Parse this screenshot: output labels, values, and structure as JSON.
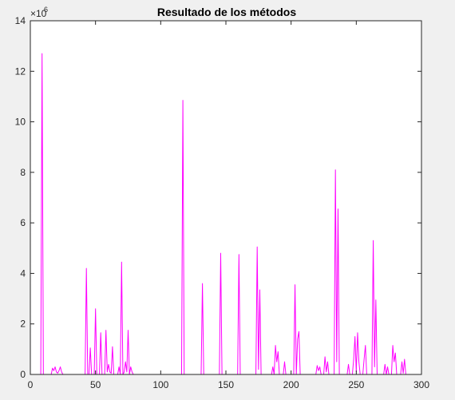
{
  "chart_data": {
    "type": "line",
    "title": "Resultado de los métodos",
    "xlabel": "",
    "ylabel": "",
    "xlim": [
      0,
      300
    ],
    "ylim": [
      0,
      14
    ],
    "x_ticks": [
      0,
      50,
      100,
      150,
      200,
      250,
      300
    ],
    "y_ticks": [
      0,
      2,
      4,
      6,
      8,
      10,
      12,
      14
    ],
    "y_exponent_label": "×10",
    "y_exponent_power": "6",
    "grid": false,
    "series": [
      {
        "color": "#ff00ff",
        "points": [
          [
            0,
            0
          ],
          [
            8,
            0
          ],
          [
            9,
            12.7
          ],
          [
            10,
            0
          ],
          [
            16,
            0
          ],
          [
            17,
            0.25
          ],
          [
            18,
            0.15
          ],
          [
            19,
            0.3
          ],
          [
            20,
            0.1
          ],
          [
            21,
            0.05
          ],
          [
            22,
            0.15
          ],
          [
            23,
            0.3
          ],
          [
            24,
            0.1
          ],
          [
            25,
            0
          ],
          [
            42,
            0
          ],
          [
            43,
            4.2
          ],
          [
            44,
            0
          ],
          [
            45,
            0
          ],
          [
            46,
            1.05
          ],
          [
            47,
            0
          ],
          [
            49,
            0
          ],
          [
            50,
            2.6
          ],
          [
            51,
            0
          ],
          [
            53,
            0
          ],
          [
            54,
            1.65
          ],
          [
            55,
            0
          ],
          [
            57,
            0
          ],
          [
            58,
            1.75
          ],
          [
            59,
            0.1
          ],
          [
            60,
            0.4
          ],
          [
            61,
            0.1
          ],
          [
            62,
            0.05
          ],
          [
            63,
            1.1
          ],
          [
            64,
            0
          ],
          [
            67,
            0
          ],
          [
            68,
            0.3
          ],
          [
            69,
            0
          ],
          [
            70,
            4.45
          ],
          [
            71,
            0
          ],
          [
            72,
            0.1
          ],
          [
            73,
            0.5
          ],
          [
            74,
            0.1
          ],
          [
            75,
            1.75
          ],
          [
            76,
            0
          ],
          [
            77,
            0.3
          ],
          [
            78,
            0.1
          ],
          [
            79,
            0
          ],
          [
            116,
            0
          ],
          [
            117,
            10.85
          ],
          [
            118,
            0
          ],
          [
            131,
            0
          ],
          [
            132,
            3.6
          ],
          [
            133,
            0
          ],
          [
            145,
            0
          ],
          [
            146,
            4.8
          ],
          [
            147,
            0
          ],
          [
            159,
            0
          ],
          [
            160,
            4.75
          ],
          [
            161,
            0
          ],
          [
            173,
            0
          ],
          [
            174,
            5.05
          ],
          [
            175,
            0.2
          ],
          [
            176,
            3.35
          ],
          [
            177,
            0
          ],
          [
            185,
            0
          ],
          [
            186,
            0.3
          ],
          [
            187,
            0
          ],
          [
            188,
            1.15
          ],
          [
            189,
            0.5
          ],
          [
            190,
            0.9
          ],
          [
            191,
            0
          ],
          [
            194,
            0
          ],
          [
            195,
            0.5
          ],
          [
            196,
            0
          ],
          [
            202,
            0
          ],
          [
            203,
            3.55
          ],
          [
            204,
            0
          ],
          [
            205,
            1.4
          ],
          [
            206,
            1.7
          ],
          [
            207,
            0
          ],
          [
            219,
            0
          ],
          [
            220,
            0.35
          ],
          [
            221,
            0.15
          ],
          [
            222,
            0.3
          ],
          [
            223,
            0
          ],
          [
            225,
            0
          ],
          [
            226,
            0.7
          ],
          [
            227,
            0.1
          ],
          [
            228,
            0.5
          ],
          [
            229,
            0
          ],
          [
            233,
            0
          ],
          [
            234,
            8.1
          ],
          [
            235,
            0.5
          ],
          [
            236,
            6.55
          ],
          [
            237,
            0
          ],
          [
            243,
            0
          ],
          [
            244,
            0.4
          ],
          [
            245,
            0
          ],
          [
            247,
            0
          ],
          [
            248,
            0.6
          ],
          [
            249,
            1.5
          ],
          [
            250,
            0.1
          ],
          [
            251,
            1.65
          ],
          [
            252,
            0.5
          ],
          [
            253,
            0
          ],
          [
            255,
            0
          ],
          [
            256,
            0.6
          ],
          [
            257,
            1.15
          ],
          [
            258,
            0
          ],
          [
            262,
            0
          ],
          [
            263,
            5.3
          ],
          [
            264,
            0.3
          ],
          [
            265,
            2.95
          ],
          [
            266,
            0
          ],
          [
            271,
            0
          ],
          [
            272,
            0.4
          ],
          [
            273,
            0
          ],
          [
            274,
            0.3
          ],
          [
            275,
            0
          ],
          [
            277,
            0
          ],
          [
            278,
            1.15
          ],
          [
            279,
            0.5
          ],
          [
            280,
            0.85
          ],
          [
            281,
            0
          ],
          [
            284,
            0
          ],
          [
            285,
            0.5
          ],
          [
            286,
            0.05
          ],
          [
            287,
            0.6
          ],
          [
            288,
            0
          ],
          [
            290,
            0
          ]
        ]
      }
    ]
  }
}
